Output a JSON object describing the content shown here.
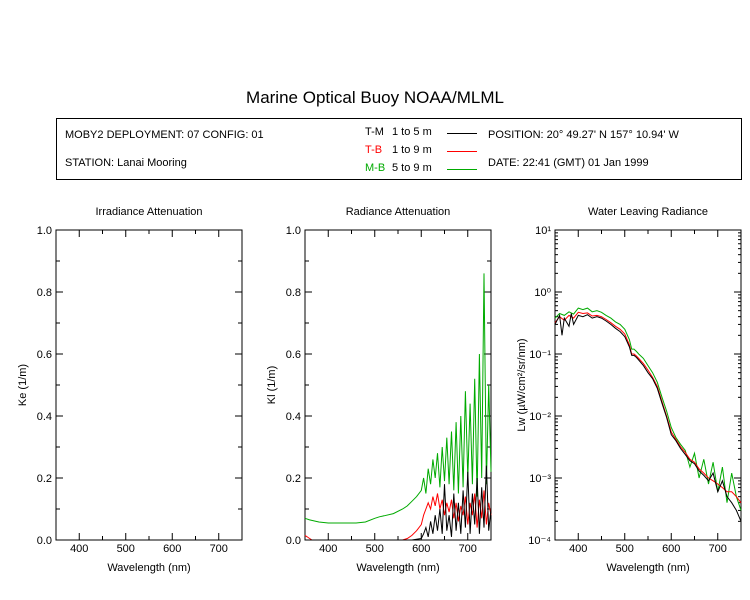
{
  "header": {
    "title": "Marine Optical Buoy NOAA/MLML",
    "deployment": "MOBY2 DEPLOYMENT: 07 CONFIG: 01",
    "station": "STATION: Lanai Mooring",
    "position": "POSITION: 20° 49.27' N   157° 10.94' W",
    "date": "DATE: 22:41 (GMT) 01 Jan 1999"
  },
  "legend": [
    {
      "code": "T-M",
      "range": "1 to 5  m",
      "color": "#000000"
    },
    {
      "code": "T-B",
      "range": "1 to 9  m",
      "color": "#ff0000"
    },
    {
      "code": "M-B",
      "range": "5 to 9  m",
      "color": "#00aa00"
    }
  ],
  "chart_data": [
    {
      "type": "line",
      "title": "Irradiance Attenuation",
      "xlabel": "Wavelength (nm)",
      "ylabel": "Ke  (1/m)",
      "xlim": [
        350,
        750
      ],
      "ylim": [
        0,
        1
      ],
      "xticks": [
        "400",
        "500",
        "600",
        "700"
      ],
      "yticks": [
        "0.0",
        "0.2",
        "0.4",
        "0.6",
        "0.8",
        "1.0"
      ],
      "series": []
    },
    {
      "type": "line",
      "title": "Radiance Attenuation",
      "xlabel": "Wavelength (nm)",
      "ylabel": "Kl  (1/m)",
      "xlim": [
        350,
        750
      ],
      "ylim": [
        0,
        1
      ],
      "xticks": [
        "400",
        "500",
        "600",
        "700"
      ],
      "yticks": [
        "0.0",
        "0.2",
        "0.4",
        "0.6",
        "0.8",
        "1.0"
      ],
      "series": [
        {
          "name": "M-B",
          "color": "#00aa00",
          "x": [
            350,
            360,
            380,
            400,
            420,
            440,
            460,
            480,
            500,
            510,
            520,
            540,
            560,
            570,
            580,
            590,
            600,
            605,
            610,
            615,
            620,
            625,
            630,
            635,
            640,
            645,
            650,
            655,
            660,
            665,
            670,
            675,
            680,
            685,
            690,
            695,
            700,
            705,
            710,
            715,
            720,
            725,
            730,
            735,
            740,
            745,
            750
          ],
          "y": [
            0.07,
            0.065,
            0.058,
            0.055,
            0.055,
            0.055,
            0.055,
            0.058,
            0.07,
            0.075,
            0.078,
            0.085,
            0.1,
            0.11,
            0.125,
            0.14,
            0.16,
            0.2,
            0.15,
            0.23,
            0.18,
            0.26,
            0.2,
            0.28,
            0.17,
            0.3,
            0.19,
            0.33,
            0.18,
            0.35,
            0.16,
            0.38,
            0.15,
            0.4,
            0.17,
            0.48,
            0.2,
            0.44,
            0.18,
            0.52,
            0.14,
            0.6,
            0.2,
            0.86,
            0.18,
            0.5,
            0.22
          ]
        },
        {
          "name": "T-B",
          "color": "#ff0000",
          "x": [
            350,
            355,
            360,
            365,
            500,
            520,
            540,
            560,
            570,
            580,
            590,
            600,
            605,
            610,
            615,
            620,
            625,
            630,
            635,
            640,
            645,
            650,
            655,
            660,
            665,
            670,
            675,
            680,
            685,
            690,
            695,
            700,
            705,
            710,
            715,
            720,
            725,
            730,
            735,
            740,
            745,
            750
          ],
          "y": [
            0.015,
            0.01,
            0.005,
            0,
            0,
            0,
            0,
            0,
            0.005,
            0.015,
            0.03,
            0.05,
            0.08,
            0.1,
            0.12,
            0.1,
            0.14,
            0.11,
            0.15,
            0.1,
            0.13,
            0.08,
            0.12,
            0.09,
            0.13,
            0.07,
            0.12,
            0.06,
            0.11,
            0.08,
            0.14,
            0.05,
            0.12,
            0.08,
            0.15,
            0.04,
            0.13,
            0.07,
            0.16,
            0.05,
            0.12,
            0.08
          ]
        },
        {
          "name": "T-M",
          "color": "#000000",
          "x": [
            350,
            560,
            580,
            600,
            605,
            610,
            615,
            620,
            625,
            630,
            635,
            640,
            645,
            650,
            655,
            660,
            665,
            670,
            675,
            680,
            685,
            690,
            695,
            700,
            705,
            710,
            715,
            720,
            725,
            730,
            735,
            740,
            745,
            750
          ],
          "y": [
            0,
            0,
            0,
            0.005,
            0.02,
            0.04,
            0.01,
            0.06,
            0.02,
            0.08,
            0.03,
            0.1,
            0.02,
            0.18,
            0.03,
            0.08,
            0.01,
            0.15,
            0.03,
            0.12,
            0.02,
            0.16,
            0.04,
            0.22,
            0.02,
            0.15,
            0.05,
            0.2,
            0.02,
            0.17,
            0.04,
            0.24,
            0.03,
            0.1
          ]
        }
      ]
    },
    {
      "type": "line",
      "title": "Water Leaving Radiance",
      "xlabel": "Wavelength (nm)",
      "ylabel": "Lw  (µW/cm²/sr/nm)",
      "yscale": "log",
      "xlim": [
        350,
        750
      ],
      "ylim": [
        0.0001,
        10
      ],
      "xticks": [
        "400",
        "500",
        "600",
        "700"
      ],
      "yticks": [
        "10¹",
        "10⁰",
        "10⁻¹",
        "10⁻²",
        "10⁻³",
        "10⁻⁴"
      ],
      "series": [
        {
          "name": "M-B",
          "color": "#00aa00",
          "x": [
            350,
            360,
            370,
            380,
            390,
            400,
            410,
            420,
            430,
            440,
            450,
            460,
            470,
            480,
            490,
            500,
            510,
            515,
            520,
            525,
            530,
            540,
            550,
            560,
            570,
            580,
            590,
            600,
            610,
            620,
            630,
            640,
            650,
            660,
            670,
            680,
            690,
            700,
            710,
            720,
            730,
            740,
            750
          ],
          "y": [
            0.38,
            0.45,
            0.42,
            0.48,
            0.44,
            0.55,
            0.52,
            0.55,
            0.48,
            0.5,
            0.47,
            0.42,
            0.38,
            0.33,
            0.3,
            0.25,
            0.17,
            0.12,
            0.12,
            0.11,
            0.1,
            0.085,
            0.065,
            0.05,
            0.035,
            0.02,
            0.012,
            0.0065,
            0.0045,
            0.0035,
            0.0028,
            0.0015,
            0.0025,
            0.001,
            0.002,
            0.0008,
            0.0018,
            0.0006,
            0.0015,
            0.0004,
            0.0012,
            0.0005,
            0.0003
          ]
        },
        {
          "name": "T-B",
          "color": "#ff0000",
          "x": [
            350,
            360,
            370,
            380,
            390,
            400,
            410,
            420,
            430,
            440,
            450,
            460,
            470,
            480,
            490,
            500,
            510,
            515,
            520,
            525,
            530,
            540,
            550,
            560,
            570,
            580,
            590,
            600,
            610,
            620,
            630,
            640,
            650,
            660,
            670,
            680,
            690,
            700,
            710,
            720,
            730,
            740,
            750
          ],
          "y": [
            0.32,
            0.4,
            0.35,
            0.42,
            0.38,
            0.47,
            0.45,
            0.46,
            0.41,
            0.42,
            0.4,
            0.36,
            0.32,
            0.28,
            0.25,
            0.21,
            0.14,
            0.1,
            0.1,
            0.093,
            0.085,
            0.07,
            0.055,
            0.042,
            0.03,
            0.017,
            0.01,
            0.0055,
            0.0042,
            0.0032,
            0.0026,
            0.002,
            0.0018,
            0.0014,
            0.0012,
            0.001,
            0.0009,
            0.0008,
            0.0007,
            0.0006,
            0.0006,
            0.0005,
            0.0004
          ]
        },
        {
          "name": "T-M",
          "color": "#000000",
          "x": [
            350,
            360,
            365,
            370,
            380,
            385,
            390,
            400,
            410,
            420,
            430,
            440,
            450,
            460,
            470,
            480,
            490,
            500,
            510,
            515,
            520,
            525,
            530,
            540,
            550,
            560,
            570,
            580,
            590,
            600,
            610,
            620,
            630,
            640,
            650,
            660,
            670,
            680,
            690,
            700,
            710,
            720,
            730,
            740,
            750
          ],
          "y": [
            0.3,
            0.42,
            0.2,
            0.38,
            0.28,
            0.45,
            0.3,
            0.42,
            0.4,
            0.43,
            0.38,
            0.4,
            0.38,
            0.34,
            0.3,
            0.26,
            0.23,
            0.19,
            0.13,
            0.095,
            0.095,
            0.088,
            0.08,
            0.065,
            0.05,
            0.04,
            0.028,
            0.016,
            0.0095,
            0.005,
            0.004,
            0.003,
            0.0024,
            0.0019,
            0.0017,
            0.0013,
            0.0011,
            0.0009,
            0.0012,
            0.0006,
            0.0009,
            0.0005,
            0.0004,
            0.0003,
            0.0002
          ]
        }
      ]
    }
  ]
}
